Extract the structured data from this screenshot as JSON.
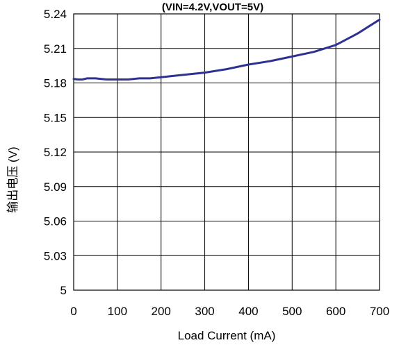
{
  "chart_data": {
    "type": "line",
    "title": "(VIN=4.2V,VOUT=5V)",
    "xlabel": "Load Current (mA)",
    "ylabel": "输出电压 (V)",
    "xlim": [
      0,
      700
    ],
    "ylim": [
      5.0,
      5.24
    ],
    "x_ticks": [
      0,
      100,
      200,
      300,
      400,
      500,
      600,
      700
    ],
    "y_ticks": [
      5.24,
      5.21,
      5.18,
      5.15,
      5.12,
      5.09,
      5.06,
      5.03,
      5
    ],
    "y_tick_labels": [
      "5.24",
      "5.21",
      "5.18",
      "5.15",
      "5.12",
      "5.09",
      "5.06",
      "5.03",
      "5"
    ],
    "grid": true,
    "series": [
      {
        "color": "#2e3192",
        "x": [
          0,
          10,
          20,
          30,
          50,
          75,
          100,
          125,
          150,
          175,
          200,
          250,
          300,
          350,
          400,
          450,
          500,
          550,
          600,
          650,
          700
        ],
        "y": [
          5.1835,
          5.183,
          5.183,
          5.184,
          5.184,
          5.183,
          5.183,
          5.183,
          5.184,
          5.184,
          5.185,
          5.187,
          5.189,
          5.192,
          5.196,
          5.199,
          5.203,
          5.207,
          5.213,
          5.223,
          5.235
        ]
      }
    ]
  }
}
